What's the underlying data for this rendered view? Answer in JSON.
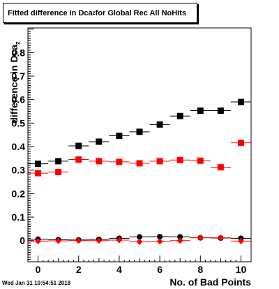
{
  "title": {
    "main": "Fitted difference in Dca",
    "sub": "z",
    "rest": " for Global Rec All NoHits"
  },
  "footer": {
    "timestamp": "Wed Jan 31 10:54:51 2018"
  },
  "chart_data": {
    "type": "scatter",
    "title": "Fitted difference in Dca_z for Global Rec All NoHits",
    "xlabel": "No. of Bad Points",
    "ylabel": "difference in Dca_z",
    "xlim": [
      -0.5,
      10.5
    ],
    "ylim": [
      -0.09,
      0.905
    ],
    "xticks": [
      0,
      2,
      4,
      6,
      8,
      10
    ],
    "yticks": [
      0,
      0.1,
      0.2,
      0.3,
      0.4,
      0.5,
      0.6,
      0.7,
      0.8
    ],
    "grid": false,
    "series": [
      {
        "marker": "square",
        "color": "#000000",
        "x": [
          0,
          1,
          2,
          3,
          4,
          5,
          6,
          7,
          8,
          9,
          10
        ],
        "y": [
          0.327,
          0.338,
          0.403,
          0.421,
          0.446,
          0.463,
          0.494,
          0.53,
          0.553,
          0.553,
          0.59
        ]
      },
      {
        "marker": "square",
        "color": "#ff0000",
        "x": [
          0,
          1,
          2,
          3,
          4,
          5,
          6,
          7,
          8,
          9,
          10
        ],
        "y": [
          0.287,
          0.292,
          0.345,
          0.338,
          0.335,
          0.329,
          0.338,
          0.343,
          0.34,
          0.312,
          0.416
        ]
      },
      {
        "marker": "circle",
        "color": "#000000",
        "x": [
          0,
          1,
          2,
          3,
          4,
          5,
          6,
          7,
          8,
          9,
          10
        ],
        "y": [
          0.006,
          0.004,
          0.003,
          0.005,
          0.01,
          0.016,
          0.017,
          0.016,
          0.012,
          0.011,
          0.01
        ]
      },
      {
        "marker": "diamond",
        "color": "#ff0000",
        "x": [
          0,
          1,
          2,
          3,
          4,
          5,
          6,
          7,
          8,
          9,
          10
        ],
        "y": [
          -0.002,
          -0.001,
          0.0,
          0.0,
          0.002,
          -0.005,
          -0.003,
          0.0,
          0.012,
          0.012,
          -0.002
        ]
      }
    ]
  }
}
